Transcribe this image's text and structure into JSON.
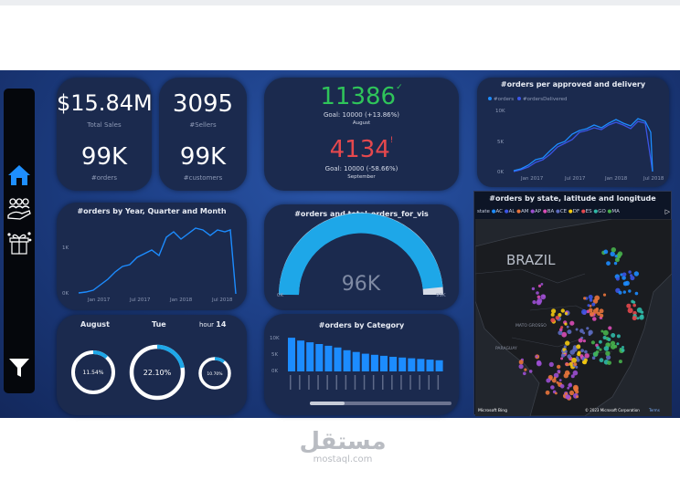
{
  "kpis": {
    "total_sales_value": "$15.84M",
    "total_sales_label": "Total Sales",
    "orders_value": "99K",
    "orders_label": "#orders",
    "sellers_value": "3095",
    "sellers_label": "#Sellers",
    "customers_value": "99K",
    "customers_label": "#customers"
  },
  "goals": {
    "august_value": "11386",
    "august_goal": "Goal: 10000 (+13.86%)",
    "august_label": "August",
    "september_value": "4134",
    "september_goal": "Goal: 10000 (-58.66%)",
    "september_label": "September",
    "up_color": "#2fc45a",
    "down_color": "#e5484d"
  },
  "approved_chart": {
    "title": "#orders per approved and delivery",
    "legend": [
      "#orders",
      "#ordersDelivered"
    ],
    "y_ticks": [
      "10K",
      "5K",
      "0K"
    ],
    "x_ticks": [
      "Jan 2017",
      "Jul 2017",
      "Jan 2018",
      "Jul 2018"
    ],
    "colors": [
      "#1c8cff",
      "#3b55e6"
    ]
  },
  "year_chart": {
    "title": "#orders by Year, Quarter and Month",
    "y_ticks": [
      "1K",
      "0K"
    ],
    "x_ticks": [
      "Jan 2017",
      "Jul 2017",
      "Jan 2018",
      "Jul 2018"
    ],
    "color": "#1c8cff"
  },
  "gauge": {
    "title": "#orders and total_orders_for_vis",
    "value_label": "96K",
    "min_label": "0K",
    "max_label": "99K",
    "fill_fraction": 0.97,
    "color": "#1ea7e8"
  },
  "map": {
    "title": "#orders by state, latitude and longitude",
    "legend_label": "state",
    "states": [
      "AC",
      "AL",
      "AM",
      "AP",
      "BA",
      "CE",
      "DF",
      "ES",
      "GO",
      "MA"
    ],
    "state_colors": [
      "#1c8cff",
      "#3b55e6",
      "#e8743b",
      "#9b4fd1",
      "#d94cb5",
      "#5c6bc0",
      "#f2c80f",
      "#e5484d",
      "#2fb8a6",
      "#47b04b"
    ],
    "country_label": "BRAZIL",
    "regions": [
      "MATO GROSSO",
      "PARAGUAY"
    ],
    "copyright": "© 2023 Microsoft Corporation",
    "terms": "Terms",
    "brand": "Microsoft Bing"
  },
  "donuts": {
    "month_label": "August",
    "day_label": "Tue",
    "hour_label": "hour",
    "hour_value": "14",
    "month_pct": "11.54%",
    "month_frac": 0.1154,
    "day_pct": "22.10%",
    "day_frac": 0.221,
    "hour_pct": "10.70%",
    "hour_frac": 0.107,
    "color": "#1ea7e8"
  },
  "category_chart": {
    "title": "#orders by Category",
    "y_ticks": [
      "10K",
      "5K",
      "0K"
    ],
    "values": [
      9.7,
      8.9,
      8.4,
      7.9,
      7.4,
      6.9,
      6.1,
      5.6,
      5.1,
      4.8,
      4.5,
      4.2,
      4.0,
      3.8,
      3.6,
      3.4,
      3.2
    ],
    "color": "#1c8cff"
  },
  "watermark": {
    "arabic": "مستقل",
    "latin": "mostaql.com"
  }
}
